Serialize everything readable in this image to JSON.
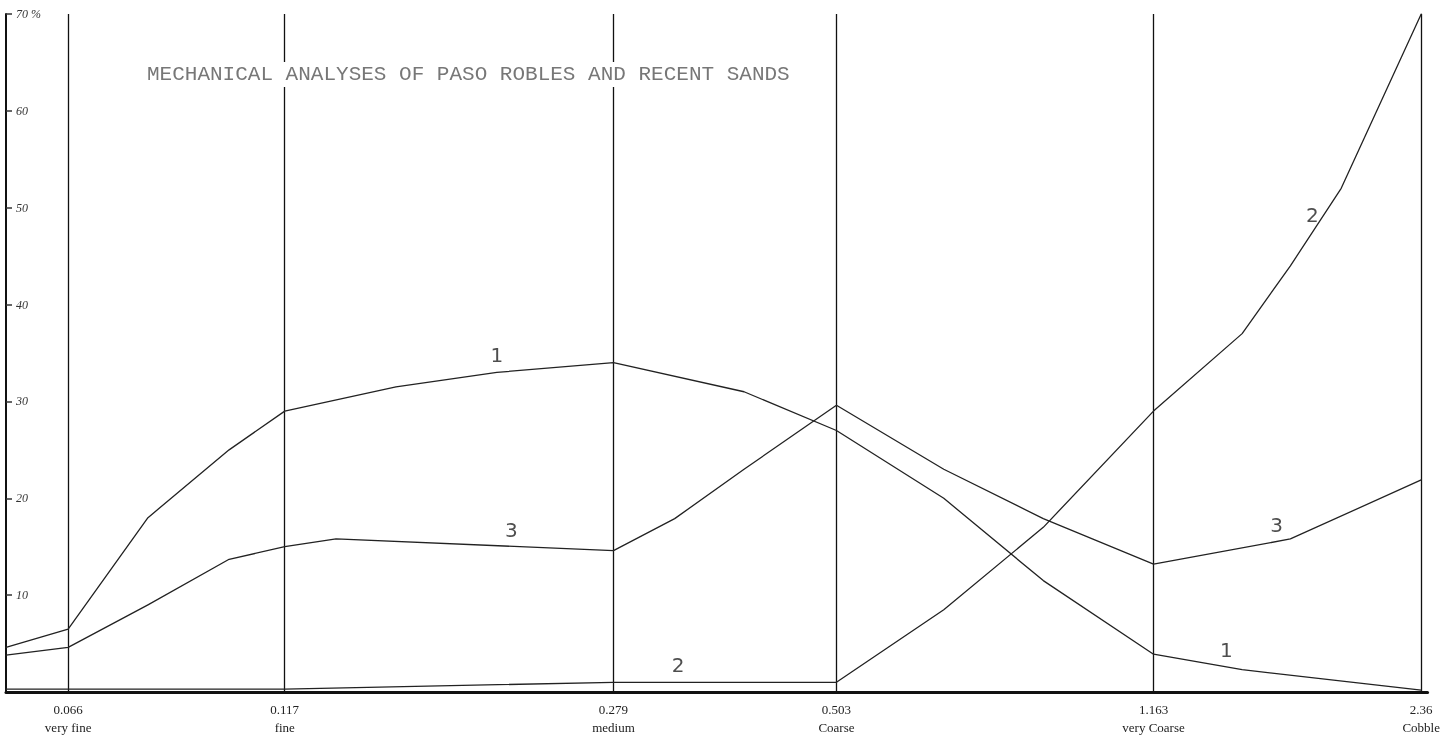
{
  "chart_data": {
    "type": "line",
    "title": "MECHANICAL ANALYSES OF PASO ROBLES AND RECENT SANDS",
    "log": "x",
    "xlim": [
      0.056,
      2.4
    ],
    "ylim": [
      0,
      70
    ],
    "xticks": [
      {
        "value": 0.066,
        "label": "0.066\nvery fine"
      },
      {
        "value": 0.117,
        "label": "0.117\nfine"
      },
      {
        "value": 0.279,
        "label": "0.279\nmedium"
      },
      {
        "value": 0.503,
        "label": "0.503\nCoarse"
      },
      {
        "value": 1.163,
        "label": "1.163\nvery Coarse"
      },
      {
        "value": 2.36,
        "label": "2.36\nCobble"
      }
    ],
    "yticks": [
      10,
      20,
      30,
      40,
      50,
      60,
      {
        "value": 70,
        "label": "70 %"
      }
    ],
    "grid": "x",
    "marker": "none",
    "line_style": "solid",
    "series": [
      {
        "color": "#222222",
        "x": [
          0.056,
          0.066,
          0.0815,
          0.101,
          0.117,
          0.157,
          0.205,
          0.279,
          0.394,
          0.503,
          0.668,
          0.869,
          1.163,
          1.47,
          2.36
        ],
        "values": [
          4.6,
          6.5,
          18,
          25,
          29,
          31.5,
          33,
          34,
          31,
          27,
          20,
          11.5,
          3.9,
          2.3,
          0.2
        ]
      },
      {
        "color": "#222222",
        "x": [
          0.056,
          0.117,
          0.279,
          0.503,
          0.668,
          0.869,
          1.163,
          1.47,
          1.67,
          1.91,
          2.36
        ],
        "values": [
          0.3,
          0.3,
          1,
          1,
          8.5,
          17,
          29,
          37,
          44,
          52,
          70
        ]
      },
      {
        "color": "#222222",
        "x": [
          0.056,
          0.066,
          0.0815,
          0.101,
          0.117,
          0.134,
          0.279,
          0.328,
          0.394,
          0.503,
          0.668,
          0.869,
          1.163,
          1.67,
          2.36
        ],
        "values": [
          3.8,
          4.6,
          9,
          13.7,
          15,
          15.8,
          14.6,
          17.9,
          23,
          29.6,
          23,
          17.9,
          13.2,
          15.8,
          21.9
        ]
      }
    ],
    "annotations": [
      {
        "text": "1",
        "x": 0.205,
        "y": 33
      },
      {
        "text": "1",
        "x": 1.41,
        "y": 2.6
      },
      {
        "text": "2",
        "x": 0.331,
        "y": 1
      },
      {
        "text": "2",
        "x": 1.77,
        "y": 47.5
      },
      {
        "text": "3",
        "x": 0.213,
        "y": 15
      },
      {
        "text": "3",
        "x": 1.61,
        "y": 15.5
      }
    ]
  }
}
